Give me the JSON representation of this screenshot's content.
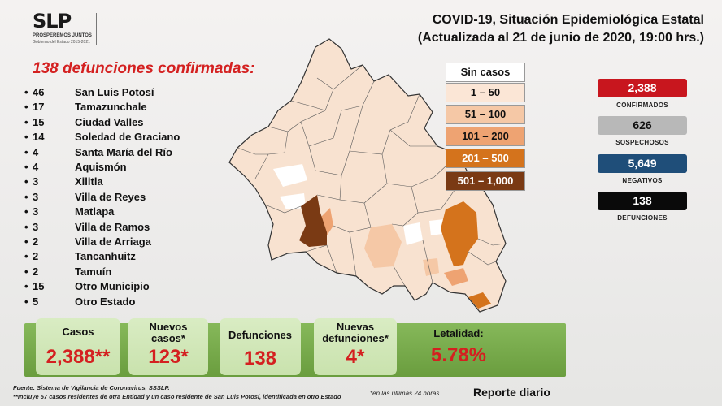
{
  "logo": {
    "mark": "SLP",
    "line1": "PROSPEREMOS JUNTOS",
    "line2": "Gobierno del Estado 2015-2021"
  },
  "title": {
    "line1": "COVID-19, Situación Epidemiológica Estatal",
    "line2": "(Actualizada al 21 de junio de 2020, 19:00 hrs.)"
  },
  "deaths_heading": "138 defunciones confirmadas:",
  "deaths_list": [
    {
      "count": "46",
      "name": "San Luis Potosí"
    },
    {
      "count": "17",
      "name": "Tamazunchale"
    },
    {
      "count": "15",
      "name": "Ciudad Valles"
    },
    {
      "count": "14",
      "name": "Soledad de Graciano"
    },
    {
      "count": "4",
      "name": "Santa María del Río"
    },
    {
      "count": "4",
      "name": "Aquismón"
    },
    {
      "count": "3",
      "name": "Xilitla"
    },
    {
      "count": "3",
      "name": "Villa de Reyes"
    },
    {
      "count": "3",
      "name": "Matlapa"
    },
    {
      "count": "3",
      "name": "Villa de Ramos"
    },
    {
      "count": "2",
      "name": "Villa de Arriaga"
    },
    {
      "count": "2",
      "name": "Tancanhuitz"
    },
    {
      "count": "2",
      "name": "Tamuín"
    },
    {
      "count": "15",
      "name": "Otro Municipio"
    },
    {
      "count": "5",
      "name": "Otro Estado"
    }
  ],
  "legend": [
    {
      "label": "Sin casos",
      "color": "#ffffff",
      "text_color": "#111111"
    },
    {
      "label": "1 – 50",
      "color": "#fbe6d6",
      "text_color": "#111111"
    },
    {
      "label": "51 – 100",
      "color": "#f5c8a6",
      "text_color": "#111111"
    },
    {
      "label": "101 – 200",
      "color": "#eea372",
      "text_color": "#111111"
    },
    {
      "label": "201 – 500",
      "color": "#d4731c",
      "text_color": "#ffffff"
    },
    {
      "label": "501 – 1,000",
      "color": "#7a3a14",
      "text_color": "#ffffff"
    }
  ],
  "stats": [
    {
      "value": "2,388",
      "label": "CONFIRMADOS",
      "color": "#c8161e"
    },
    {
      "value": "626",
      "label": "SOSPECHOSOS",
      "color": "#b8b8b8"
    },
    {
      "value": "5,649",
      "label": "NEGATIVOS",
      "color": "#1f4e79"
    },
    {
      "value": "138",
      "label": "DEFUNCIONES",
      "color": "#0a0a0a"
    }
  ],
  "cards": [
    {
      "label": "Casos",
      "value": "2,388**"
    },
    {
      "label": "Nuevos casos*",
      "value": "123*"
    },
    {
      "label": "Defunciones",
      "value": "138"
    },
    {
      "label": "Nuevas defunciones*",
      "value": "4*"
    },
    {
      "label": "Letalidad:",
      "value": "5.78%"
    }
  ],
  "footer": {
    "source": "Fuente: Sistema de Vigilancia de Coronavirus, SSSLP.",
    "note": "**Incluye 57 casos residentes de otra Entidad y un caso residente de San Luis Potosí, identificada en otro Estado",
    "last24": "*en las ultimas 24 horas.",
    "report": "Reporte diario"
  }
}
